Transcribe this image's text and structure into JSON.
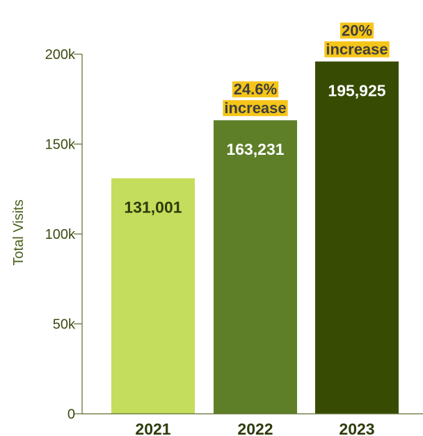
{
  "chart_data": {
    "type": "bar",
    "categories": [
      "2021",
      "2022",
      "2023"
    ],
    "values": [
      131001,
      163231,
      195925
    ],
    "value_labels": [
      "131,001",
      "163,231",
      "195,925"
    ],
    "ylabel": "Total Visits",
    "xlabel": "",
    "ylim": [
      0,
      200000
    ],
    "yticks": [
      0,
      50000,
      100000,
      150000,
      200000
    ],
    "ytick_labels": [
      "0",
      "50k",
      "100k",
      "150k",
      "200k"
    ],
    "annotations": [
      {
        "category": "2022",
        "lines": [
          "24.6%",
          "increase"
        ]
      },
      {
        "category": "2023",
        "lines": [
          "20%",
          "increase"
        ]
      }
    ],
    "bar_colors": [
      "#c5dd5c",
      "#5e7f28",
      "#374c02"
    ],
    "value_label_colors": [
      "#2d3b0c",
      "#ffffff",
      "#ffffff"
    ],
    "annotation_highlight": "#f5c518",
    "grid": false,
    "legend": "none"
  }
}
